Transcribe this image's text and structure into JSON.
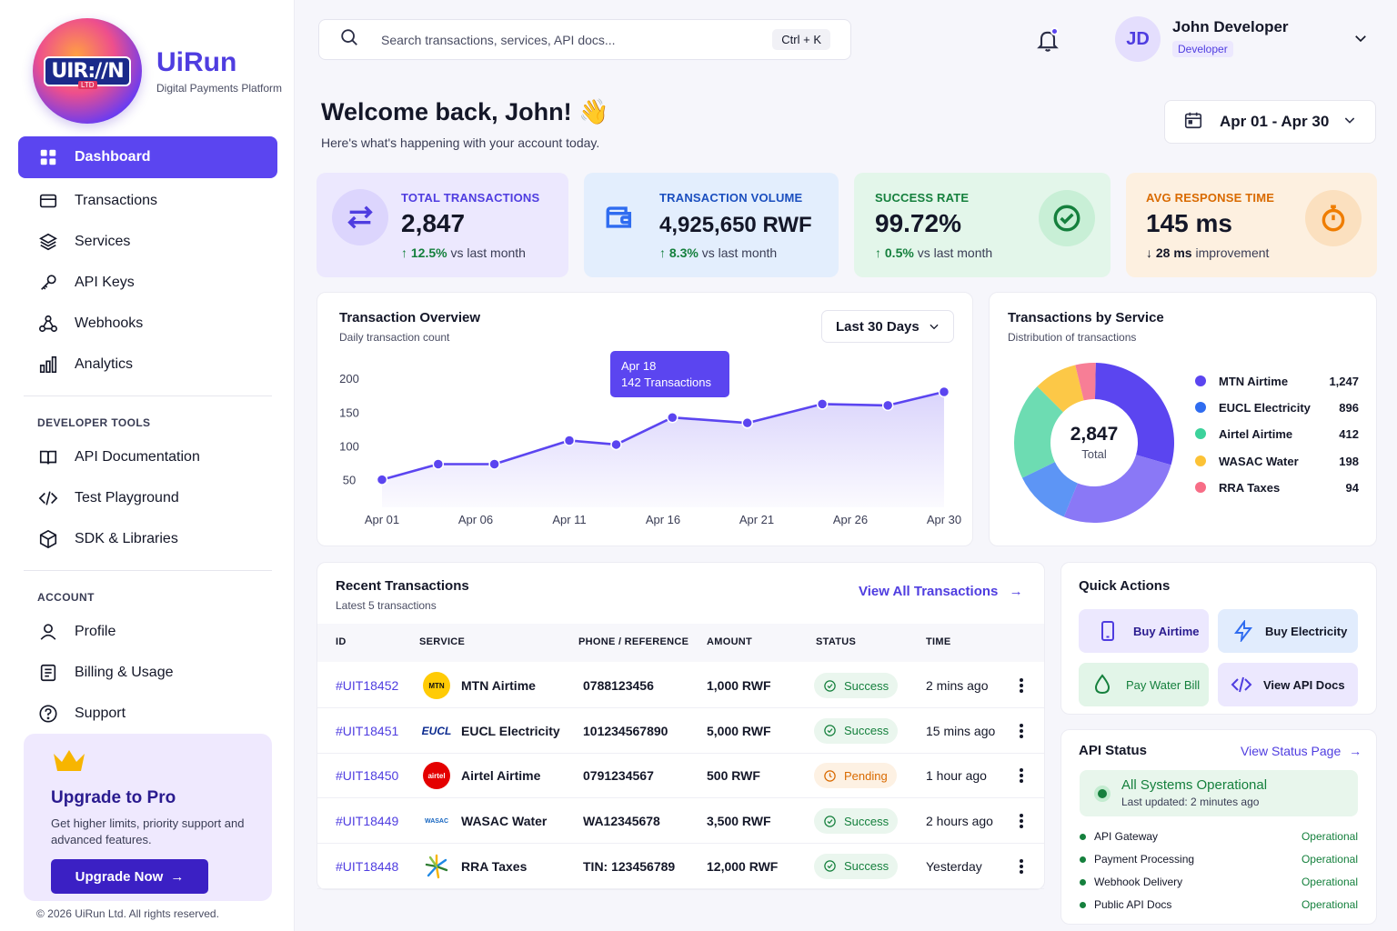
{
  "brand": {
    "logo_text": "UIR://N",
    "logo_ltd": "LTD",
    "name": "UiRun",
    "tagline": "Digital Payments Platform"
  },
  "sidebar": {
    "main": [
      {
        "label": "Dashboard",
        "icon": "grid-icon",
        "active": true
      },
      {
        "label": "Transactions",
        "icon": "card-icon"
      },
      {
        "label": "Services",
        "icon": "layers-icon"
      },
      {
        "label": "API Keys",
        "icon": "key-icon"
      },
      {
        "label": "Webhooks",
        "icon": "webhook-icon"
      },
      {
        "label": "Analytics",
        "icon": "bar-chart-icon"
      }
    ],
    "dev_title": "DEVELOPER TOOLS",
    "dev": [
      {
        "label": "API Documentation",
        "icon": "book-icon"
      },
      {
        "label": "Test Playground",
        "icon": "code-icon"
      },
      {
        "label": "SDK & Libraries",
        "icon": "cube-icon"
      }
    ],
    "account_title": "ACCOUNT",
    "account": [
      {
        "label": "Profile",
        "icon": "user-icon"
      },
      {
        "label": "Billing & Usage",
        "icon": "receipt-icon"
      },
      {
        "label": "Support",
        "icon": "help-icon"
      }
    ]
  },
  "upgrade": {
    "title": "Upgrade to Pro",
    "desc": "Get higher limits, priority support and advanced features.",
    "button": "Upgrade Now"
  },
  "copyright": "© 2026 UiRun Ltd. All rights reserved.",
  "header": {
    "search_placeholder": "Search transactions, services, API docs...",
    "search_shortcut": "Ctrl + K",
    "user_initials": "JD",
    "user_name": "John Developer",
    "user_role": "Developer"
  },
  "welcome": {
    "title": "Welcome back, John! 👋",
    "subtitle": "Here's what's happening with your account today.",
    "date_range": "Apr 01 - Apr 30"
  },
  "stats": [
    {
      "label": "TOTAL TRANSACTIONS",
      "value": "2,847",
      "change": "12.5%",
      "change_text": " vs last month"
    },
    {
      "label": "TRANSACTION VOLUME",
      "value": "4,925,650 RWF",
      "change": "8.3%",
      "change_text": " vs last month"
    },
    {
      "label": "SUCCESS RATE",
      "value": "99.72%",
      "change": "0.5%",
      "change_text": " vs last month"
    },
    {
      "label": "AVG RESPONSE TIME",
      "value": "145 ms",
      "change": "28 ms",
      "change_text": " improvement"
    }
  ],
  "overview": {
    "title": "Transaction Overview",
    "subtitle": "Daily transaction count",
    "range": "Last 30 Days",
    "tooltip_date": "Apr 18",
    "tooltip_value": "142 Transactions"
  },
  "chart_data": [
    {
      "type": "area",
      "title": "Transaction Overview",
      "subtitle": "Daily transaction count",
      "x_ticks": [
        "Apr 01",
        "Apr 06",
        "Apr 11",
        "Apr 16",
        "Apr 21",
        "Apr 26",
        "Apr 30"
      ],
      "y_ticks": [
        200,
        150,
        100,
        50
      ],
      "ylim": [
        40,
        215
      ],
      "x": [
        1,
        4,
        7,
        11,
        13.5,
        16.5,
        20.5,
        24.5,
        28,
        31
      ],
      "values": [
        50,
        73,
        73,
        108,
        102,
        142,
        134,
        162,
        160,
        180
      ],
      "color": "#5b45f0"
    },
    {
      "type": "pie",
      "title": "Transactions by Service",
      "subtitle": "Distribution of transactions",
      "center_value": "2,847",
      "center_label": "Total",
      "categories": [
        "MTN Airtime",
        "EUCL Electricity",
        "Airtel Airtime",
        "WASAC Water",
        "RRA Taxes"
      ],
      "values": [
        1247,
        896,
        412,
        198,
        94
      ],
      "display_values": [
        "1,247",
        "896",
        "412",
        "198",
        "94"
      ],
      "colors": [
        "#5b45f0",
        "#2f6cf0",
        "#3cd29b",
        "#fcc236",
        "#f76d86"
      ],
      "slice_colors": [
        "#5b45f0",
        "#8a78f6",
        "#5d95f5",
        "#6ddcb2",
        "#fcc847",
        "#f77e96"
      ],
      "slice_values": [
        830,
        760,
        330,
        560,
        250,
        117
      ]
    }
  ],
  "recent": {
    "title": "Recent Transactions",
    "subtitle": "Latest 5 transactions",
    "view_all": "View All Transactions",
    "headers": [
      "ID",
      "SERVICE",
      "PHONE / REFERENCE",
      "AMOUNT",
      "STATUS",
      "TIME"
    ],
    "rows": [
      {
        "id": "#UIT18452",
        "logo": "MTN",
        "service": "MTN Airtime",
        "ref": "0788123456",
        "amount": "1,000 RWF",
        "status": "Success",
        "status_type": "success",
        "time": "2 mins ago"
      },
      {
        "id": "#UIT18451",
        "logo": "EUCL",
        "service": "EUCL Electricity",
        "ref": "101234567890",
        "amount": "5,000 RWF",
        "status": "Success",
        "status_type": "success",
        "time": "15 mins ago"
      },
      {
        "id": "#UIT18450",
        "logo": "airtel",
        "service": "Airtel Airtime",
        "ref": "0791234567",
        "amount": "500 RWF",
        "status": "Pending",
        "status_type": "pending",
        "time": "1 hour ago"
      },
      {
        "id": "#UIT18449",
        "logo": "WASAC",
        "service": "WASAC Water",
        "ref": "WA12345678",
        "amount": "3,500 RWF",
        "status": "Success",
        "status_type": "success",
        "time": "2 hours ago"
      },
      {
        "id": "#UIT18448",
        "logo": "",
        "service": "RRA Taxes",
        "ref": "TIN: 123456789",
        "amount": "12,000 RWF",
        "status": "Success",
        "status_type": "success",
        "time": "Yesterday"
      }
    ]
  },
  "quick": {
    "title": "Quick Actions",
    "actions": [
      {
        "label": "Buy Airtime",
        "icon": "phone-icon"
      },
      {
        "label": "Buy Electricity",
        "icon": "bolt-icon"
      },
      {
        "label": "Pay Water Bill",
        "icon": "drop-icon"
      },
      {
        "label": "View API Docs",
        "icon": "code-icon"
      }
    ]
  },
  "api": {
    "title": "API Status",
    "link": "View Status Page",
    "overall": "All Systems Operational",
    "updated": "Last updated: 2 minutes ago",
    "services": [
      {
        "name": "API Gateway",
        "status": "Operational"
      },
      {
        "name": "Payment Processing",
        "status": "Operational"
      },
      {
        "name": "Webhook Delivery",
        "status": "Operational"
      },
      {
        "name": "Public API Docs",
        "status": "Operational"
      }
    ]
  },
  "colors": {
    "accent": "#5b45f0",
    "success": "#15803d",
    "pending": "#d96a00"
  }
}
